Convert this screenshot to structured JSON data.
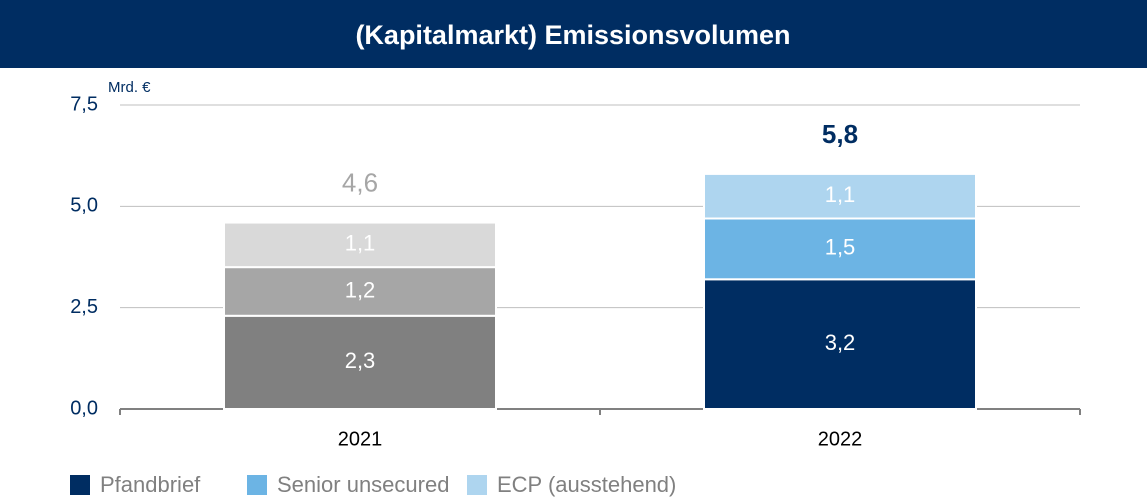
{
  "chart_data": {
    "type": "stacked_bar",
    "title": "(Kapitalmarkt) Emissionsvolumen",
    "unit_label": "Mrd. €",
    "categories": [
      "2021",
      "2022"
    ],
    "series": [
      {
        "name": "Pfandbrief",
        "color": "#002d62",
        "colors": [
          "#808080",
          "#002d62"
        ],
        "values": [
          2.3,
          3.2
        ],
        "value_labels": [
          "2,3",
          "3,2"
        ]
      },
      {
        "name": "Senior unsecured",
        "color": "#6cb4e4",
        "colors": [
          "#a6a6a6",
          "#6cb4e4"
        ],
        "values": [
          1.2,
          1.5
        ],
        "value_labels": [
          "1,2",
          "1,5"
        ]
      },
      {
        "name": "ECP (ausstehend)",
        "color": "#aed5ef",
        "colors": [
          "#d9d9d9",
          "#aed5ef"
        ],
        "values": [
          1.1,
          1.1
        ],
        "value_labels": [
          "1,1",
          "1,1"
        ]
      }
    ],
    "totals": [
      4.6,
      5.8
    ],
    "total_labels": [
      "4,6",
      "5,8"
    ],
    "total_colors": [
      "#a6a6a6",
      "#002d62"
    ],
    "total_bold": [
      false,
      true
    ],
    "ylim": [
      0,
      7.5
    ],
    "yticks": [
      {
        "value": 0,
        "label": "0,0"
      },
      {
        "value": 2.5,
        "label": "2,5"
      },
      {
        "value": 5,
        "label": "5,0"
      },
      {
        "value": 7.5,
        "label": "7,5"
      }
    ],
    "grid": true,
    "legend": "bottom"
  }
}
